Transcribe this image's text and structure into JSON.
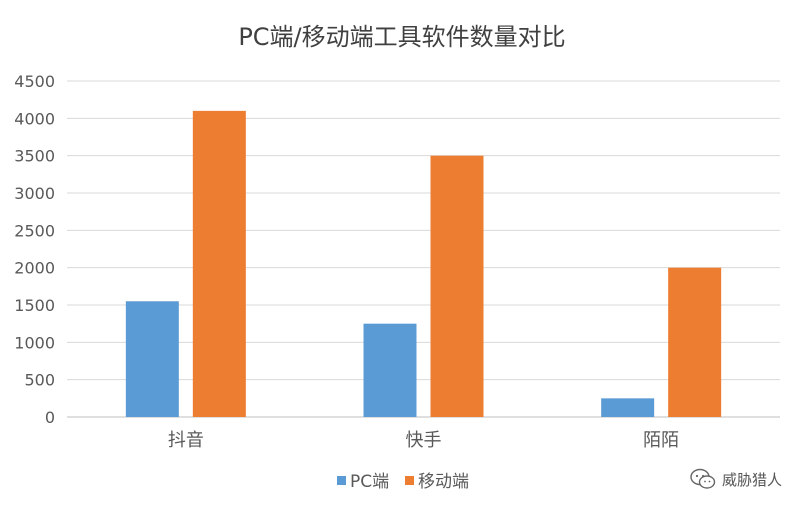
{
  "chart_data": {
    "type": "bar",
    "title": "PC端/移动端工具软件数量对比",
    "categories": [
      "抖音",
      "快手",
      "陌陌"
    ],
    "series": [
      {
        "name": "PC端",
        "values": [
          1550,
          1250,
          250
        ],
        "color": "#5B9BD5"
      },
      {
        "name": "移动端",
        "values": [
          4100,
          3500,
          2000
        ],
        "color": "#ED7D31"
      }
    ],
    "ylim": [
      0,
      4500
    ],
    "yticks": [
      0,
      500,
      1000,
      1500,
      2000,
      2500,
      3000,
      3500,
      4000,
      4500
    ],
    "grid": true,
    "legend_position": "bottom"
  },
  "watermark": {
    "text": "威胁猎人",
    "icon": "wechat-icon"
  }
}
